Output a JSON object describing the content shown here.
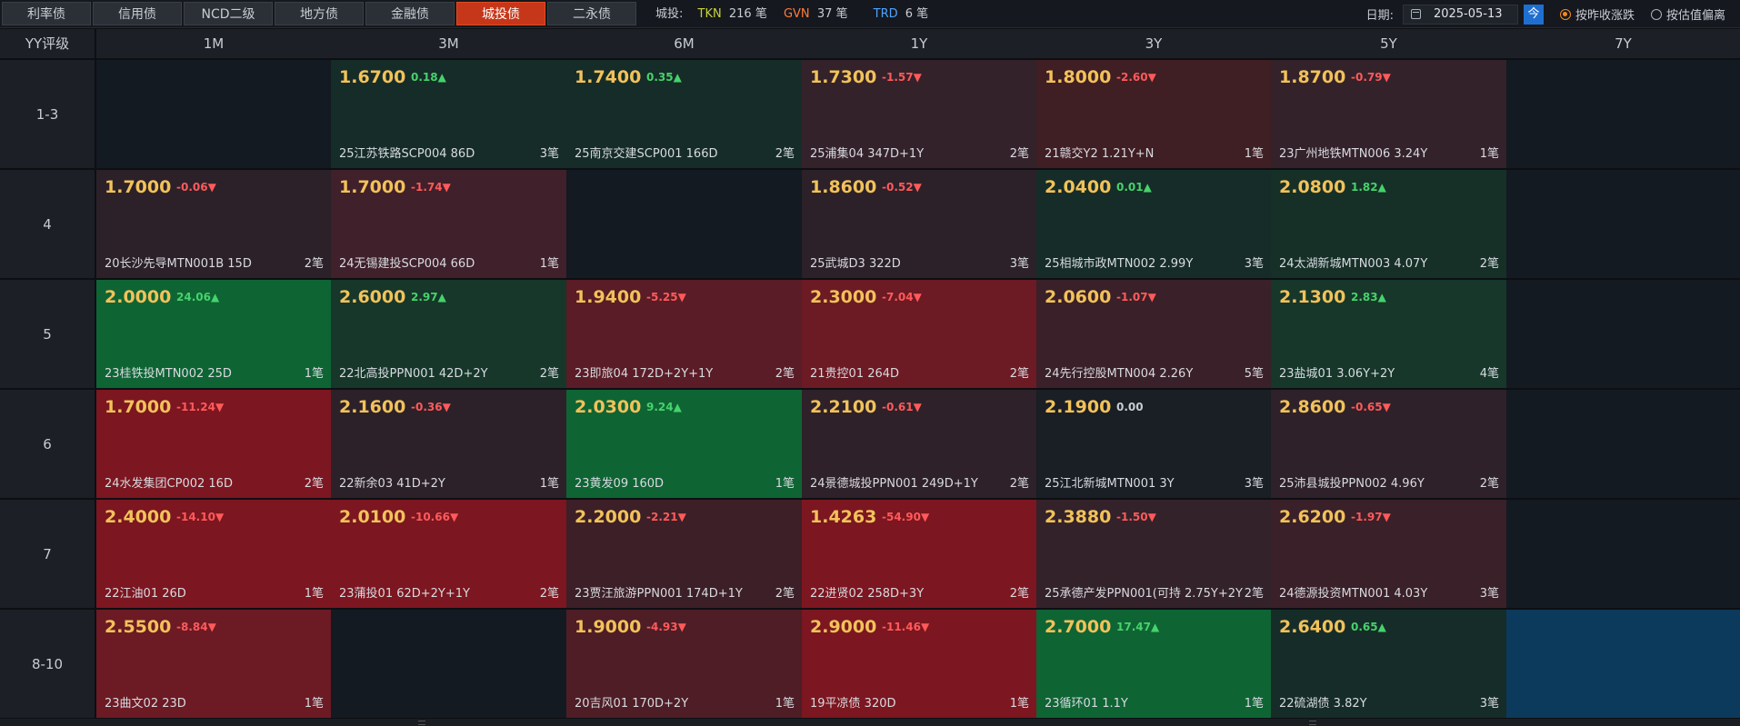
{
  "tabs": [
    {
      "label": "利率债",
      "active": false
    },
    {
      "label": "信用债",
      "active": false
    },
    {
      "label": "NCD二级",
      "active": false
    },
    {
      "label": "地方债",
      "active": false
    },
    {
      "label": "金融债",
      "active": false
    },
    {
      "label": "城投债",
      "active": true
    },
    {
      "label": "二永债",
      "active": false
    }
  ],
  "stats": {
    "prefix": "城投:",
    "tkn_label": "TKN",
    "tkn_value": "216 笔",
    "gvn_label": "GVN",
    "gvn_value": "37 笔",
    "trd_label": "TRD",
    "trd_value": "6 笔"
  },
  "controls": {
    "date_label": "日期:",
    "date_value": "2025-05-13",
    "today_label": "今",
    "radio_close": "按昨收涨跌",
    "radio_valuation": "按估值偏离",
    "radio_selected": "close"
  },
  "grid": {
    "corner": "YY评级",
    "columns": [
      "1M",
      "3M",
      "6M",
      "1Y",
      "3Y",
      "5Y",
      "7Y"
    ],
    "rows": [
      {
        "label": "1-3",
        "cells": [
          null,
          {
            "price": "1.6700",
            "chg": "0.18▲",
            "dir": "up",
            "bond": "25江苏铁路SCP004 86D",
            "count": "3笔",
            "bg": "#162c28"
          },
          {
            "price": "1.7400",
            "chg": "0.35▲",
            "dir": "up",
            "bond": "25南京交建SCP001 166D",
            "count": "2笔",
            "bg": "#162c28"
          },
          {
            "price": "1.7300",
            "chg": "-1.57▼",
            "dir": "down",
            "bond": "25浦集04 347D+1Y",
            "count": "2笔",
            "bg": "#34222a"
          },
          {
            "price": "1.8000",
            "chg": "-2.60▼",
            "dir": "down",
            "bond": "21赣交Y2 1.21Y+N",
            "count": "1笔",
            "bg": "#3f1e24"
          },
          {
            "price": "1.8700",
            "chg": "-0.79▼",
            "dir": "down",
            "bond": "23广州地铁MTN006 3.24Y",
            "count": "1笔",
            "bg": "#34222a"
          },
          null
        ]
      },
      {
        "label": "4",
        "cells": [
          {
            "price": "1.7000",
            "chg": "-0.06▼",
            "dir": "down",
            "bond": "20长沙先导MTN001B 15D",
            "count": "2笔",
            "bg": "#2c2129"
          },
          {
            "price": "1.7000",
            "chg": "-1.74▼",
            "dir": "down",
            "bond": "24无锡建投SCP004 66D",
            "count": "1笔",
            "bg": "#40202a"
          },
          null,
          {
            "price": "1.8600",
            "chg": "-0.52▼",
            "dir": "down",
            "bond": "25武城D3 322D",
            "count": "3笔",
            "bg": "#2c2129"
          },
          {
            "price": "2.0400",
            "chg": "0.01▲",
            "dir": "up",
            "bond": "25相城市政MTN002 2.99Y",
            "count": "3笔",
            "bg": "#162c28"
          },
          {
            "price": "2.0800",
            "chg": "1.82▲",
            "dir": "up",
            "bond": "24太湖新城MTN003 4.07Y",
            "count": "2笔",
            "bg": "#163027"
          },
          null
        ]
      },
      {
        "label": "5",
        "cells": [
          {
            "price": "2.0000",
            "chg": "24.06▲",
            "dir": "up",
            "bond": "23桂铁投MTN002 25D",
            "count": "1笔",
            "bg": "#0f6434"
          },
          {
            "price": "2.6000",
            "chg": "2.97▲",
            "dir": "up",
            "bond": "22北高投PPN001 42D+2Y",
            "count": "2笔",
            "bg": "#16372a"
          },
          {
            "price": "1.9400",
            "chg": "-5.25▼",
            "dir": "down",
            "bond": "23即旅04 172D+2Y+1Y",
            "count": "2笔",
            "bg": "#5a1c26"
          },
          {
            "price": "2.3000",
            "chg": "-7.04▼",
            "dir": "down",
            "bond": "21贵控01 264D",
            "count": "2笔",
            "bg": "#6c1a24"
          },
          {
            "price": "2.0600",
            "chg": "-1.07▼",
            "dir": "down",
            "bond": "24先行控股MTN004 2.26Y",
            "count": "5笔",
            "bg": "#3a2028"
          },
          {
            "price": "2.1300",
            "chg": "2.83▲",
            "dir": "up",
            "bond": "23盐城01 3.06Y+2Y",
            "count": "4笔",
            "bg": "#16372a"
          },
          null
        ]
      },
      {
        "label": "6",
        "cells": [
          {
            "price": "1.7000",
            "chg": "-11.24▼",
            "dir": "down",
            "bond": "24水发集团CP002 16D",
            "count": "2笔",
            "bg": "#7c1620"
          },
          {
            "price": "2.1600",
            "chg": "-0.36▼",
            "dir": "down",
            "bond": "22新余03 41D+2Y",
            "count": "1笔",
            "bg": "#2c2129"
          },
          {
            "price": "2.0300",
            "chg": "9.24▲",
            "dir": "up",
            "bond": "23黄发09 160D",
            "count": "1笔",
            "bg": "#0f6434"
          },
          {
            "price": "2.2100",
            "chg": "-0.61▼",
            "dir": "down",
            "bond": "24景德城投PPN001 249D+1Y",
            "count": "2笔",
            "bg": "#2e2129"
          },
          {
            "price": "2.1900",
            "chg": "0.00",
            "dir": "flat",
            "bond": "25江北新城MTN001 3Y",
            "count": "3笔",
            "bg": "#1a1e25"
          },
          {
            "price": "2.8600",
            "chg": "-0.65▼",
            "dir": "down",
            "bond": "25沛县城投PPN002 4.96Y",
            "count": "2笔",
            "bg": "#2e2129"
          },
          null
        ]
      },
      {
        "label": "7",
        "cells": [
          {
            "price": "2.4000",
            "chg": "-14.10▼",
            "dir": "down",
            "bond": "22江油01 26D",
            "count": "1笔",
            "bg": "#7c1620"
          },
          {
            "price": "2.0100",
            "chg": "-10.66▼",
            "dir": "down",
            "bond": "23蒲投01 62D+2Y+1Y",
            "count": "2笔",
            "bg": "#7c1620"
          },
          {
            "price": "2.2000",
            "chg": "-2.21▼",
            "dir": "down",
            "bond": "23贾汪旅游PPN001 174D+1Y",
            "count": "2笔",
            "bg": "#3c1f27"
          },
          {
            "price": "1.4263",
            "chg": "-54.90▼",
            "dir": "down",
            "bond": "22进贤02 258D+3Y",
            "count": "2笔",
            "bg": "#7c1620"
          },
          {
            "price": "2.3880",
            "chg": "-1.50▼",
            "dir": "down",
            "bond": "25承德产发PPN001(可持 2.75Y+2Y",
            "count": "2笔",
            "bg": "#34222a"
          },
          {
            "price": "2.6200",
            "chg": "-1.97▼",
            "dir": "down",
            "bond": "24德源投资MTN001 4.03Y",
            "count": "3笔",
            "bg": "#3a2028"
          },
          null
        ]
      },
      {
        "label": "8-10",
        "cells": [
          {
            "price": "2.5500",
            "chg": "-8.84▼",
            "dir": "down",
            "bond": "23曲文02 23D",
            "count": "1笔",
            "bg": "#6c1a24"
          },
          null,
          {
            "price": "1.9000",
            "chg": "-4.93▼",
            "dir": "down",
            "bond": "20吉风01 170D+2Y",
            "count": "1笔",
            "bg": "#4e1d26"
          },
          {
            "price": "2.9000",
            "chg": "-11.46▼",
            "dir": "down",
            "bond": "19平凉债 320D",
            "count": "1笔",
            "bg": "#7c1620"
          },
          {
            "price": "2.7000",
            "chg": "17.47▲",
            "dir": "up",
            "bond": "23循环01 1.1Y",
            "count": "1笔",
            "bg": "#0f6434"
          },
          {
            "price": "2.6400",
            "chg": "0.65▲",
            "dir": "up",
            "bond": "22硫湖债 3.82Y",
            "count": "3笔",
            "bg": "#162c28"
          },
          {
            "empty_bg": "#0c3a5c"
          }
        ]
      }
    ]
  },
  "colors": {
    "empty_cell": "#141a21",
    "active_tab": "#c6371a",
    "accent_blue": "#1f6fd1"
  }
}
